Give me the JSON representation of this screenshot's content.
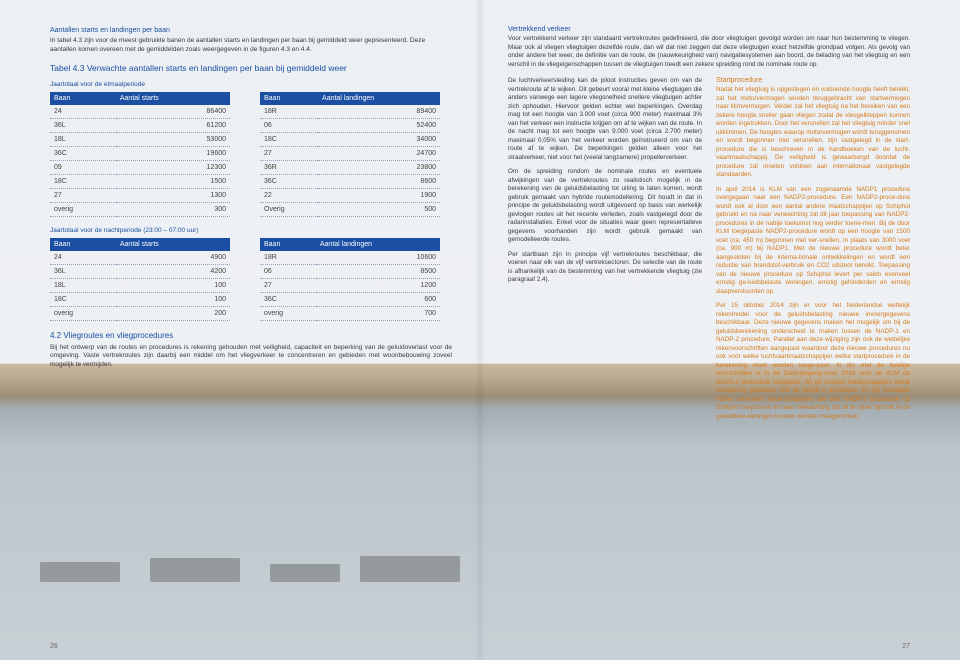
{
  "colors": {
    "accent": "#1a4fa3",
    "highlight": "#d57a1b",
    "text": "#3a3a3a",
    "rule": "#8fa0b7"
  },
  "leftPage": {
    "lead_head": "Aantallen starts en landingen per baan",
    "lead_body": "In tabel 4.3 zijn voor de meest gebruikte banen de aantallen starts en landingen per baan bij gemiddeld weer gepresenteerd. Deze aantallen komen overeen met de gemiddelden zoals weergegeven in de figuren 4.3 en 4.4.",
    "table_caption": "Tabel 4.3 Verwachte aantallen starts en landingen per baan bij gemiddeld weer",
    "subcap_1": "Jaartotaal voor de etmaalperiode",
    "subcap_2": "Jaartotaal voor de nachtperiode (23:00 – 07:00 uur)",
    "headers": {
      "baan": "Baan",
      "starts": "Aantal starts",
      "landingen": "Aantal landingen"
    },
    "etmaal_starts": [
      [
        "24",
        "86400"
      ],
      [
        "36L",
        "61200"
      ],
      [
        "18L",
        "53000"
      ],
      [
        "36C",
        "19600"
      ],
      [
        "09",
        "12300"
      ],
      [
        "18C",
        "1500"
      ],
      [
        "27",
        "1300"
      ],
      [
        "overig",
        "300"
      ]
    ],
    "etmaal_landingen": [
      [
        "18R",
        "89400"
      ],
      [
        "06",
        "52400"
      ],
      [
        "18C",
        "34000"
      ],
      [
        "27",
        "24700"
      ],
      [
        "36R",
        "23800"
      ],
      [
        "36C",
        "8600"
      ],
      [
        "22",
        "1900"
      ],
      [
        "Overig",
        "500"
      ]
    ],
    "nacht_starts": [
      [
        "24",
        "4900"
      ],
      [
        "36L",
        "4200"
      ],
      [
        "18L",
        "100"
      ],
      [
        "18C",
        "100"
      ],
      [
        "overig",
        "200"
      ]
    ],
    "nacht_landingen": [
      [
        "18R",
        "10600"
      ],
      [
        "06",
        "8500"
      ],
      [
        "27",
        "1200"
      ],
      [
        "36C",
        "600"
      ],
      [
        "overig",
        "700"
      ]
    ],
    "sect_head": "4.2 Vliegroutes en vliegprocedures",
    "sect_para": "Bij het ontwerp van de routes en procedures is rekening gehouden met veiligheid, capaciteit en beperking van de geluidoverlast voor de omgeving. Vaste vertrekroutes zijn daarbij een middel om het vliegverkeer te concentreren en gebieden met woonbebouwing zoveel mogelijk te vermijden.",
    "page_number": "26"
  },
  "rightPage": {
    "head1": "Vertrekkend verkeer",
    "para1": "Voor vertrekkend verkeer zijn standaard vertrekroutes gedefinieerd, die door vliegtuigen gevolgd worden om naar hun bestemming te vliegen. Maar ook al vliegen vliegtuigen dezelfde route, dan wil dat niet zeggen dat deze vliegtuigen exact hetzelfde grondpad volgen. Als gevolg van onder andere het weer, de definitie van de route, de (nauwkeurigheid van) navigatiesystemen aan boord, de belading van het vliegtuig en een verschil in de vliegeigenschappen tussen de vliegtuigen treedt een zekere spreiding rond de nominale route op.",
    "col_left_1": "De luchtverkeersleiding kan de piloot instructies geven om van de vertrekroute af te wijken. Dit gebeurt vooral met kleine vliegtuigen die anders vanwege een lagere vliegsnelheid snellere vliegtuigen achter zich ophouden. Hiervoor gelden echter wel beperkingen. Overdag mag tot een hoogte van 3.000 voet (circa 900 meter) maximaal 3% van het verkeer een instructie krijgen om af te wijken van de route. In de nacht mag tot een hoogte van 9.000 voet (circa 2.700 meter) maximaal 0,05% van het verkeer worden geïnstrueerd om van de route af te wijken. De beperkingen gelden alleen voor het straalverkeer, niet voor het (veelal langzamere) propellerverkeer.",
    "col_left_2": "Om de spreiding rondom de nominale routes en eventuele afwijkingen van de vertrekroutes zo realistisch mogelijk in de berekening van de geluidsbelasting tot uiting te laten komen, wordt gebruik gemaakt van hybride routemodellering. Dit houdt in dat in principe de geluidsbelasting wordt uitgevoerd op basis van werkelijk gevlogen routes uit het recente verleden, zoals vastgelegd door de radarinstallaties. Enkel voor de situaties waar geen representatieve gegevens voorhanden zijn wordt gebruik gemaakt van gemodelleerde routes.",
    "col_left_3": "Per startbaan zijn in principe vijf vertrekroutes beschikbaar, die voeren naar elk van de vijf vertreksectoren. De selectie van de route is afhankelijk van de bestemming van het vertrekkende vliegtuig (zie paragraaf 2.4).",
    "col_right_head": "Startprocedure",
    "col_right_1": "Nadat het vliegtuig is opgestegen en voldoende hoogte heeft bereikt, zal het motorvermogen worden teruggebracht van startvermogen naar klimvermogen. Verder zal het vliegtuig na het bereiken van een zekere hoogte sneller gaan vliegen zodat de vleugelkleppen kunnen worden ingetrokken. Door het versnellen zal het vliegtuig minder snel uitklimmen. De hoogtes waarop motorvermogen wordt teruggenomen en wordt begonnen met versnellen, zijn vastgelegd in de start-procedure die is beschreven in de handboeken van de lucht-vaartmaatschappij. De veiligheid is gewaarborgd doordat de procedure zal moeten voldoen aan internationaal vastgelegde standaarden.",
    "col_right_2": "In april 2014 is KLM van een zogenaamde NADP1 procedure overgegaan naar een NADP2-procedure. Een NADP2-proce-dure wordt ook al door een aantal andere maatschappijen op Schiphol gebruikt en na naar verwachting zal dit jaar toepassing van NADP2-procedures in de nabije toekomst nog verder toene-men. Bij de door KLM toegepaste NADP2-procedure wordt op een hoogte van 1500 voet (ca. 450 m) begonnen met ver-snellen, in plaats van 3000 voet (ca. 900 m) bij NADP1. Met de nieuwe procedure wordt beter aangesloten bij de interna-tionale ontwikkelingen en wordt een reductie van brandstof-verbruik en CO2 uitstoot bereikt. Toepassing van de nieuwe procedure op Schiphol levert per saldo evenveel ernstig ge-luidsbelaste woningen, ernstig gehinderden en ernstig slaapverstoorden op.",
    "col_right_3": "Per 15 oktober 2014 zijn er voor het Nederlandse wettelijk rekenmodel voor de geluidsbelasting nieuwe invoergegevens beschikbaar. Deze nieuwe gegevens maken het mogelijk om bij de geluidsberekening onderscheid te maken tussen de NADP-1 en NADP-2 procedure. Parallel aan deze wijziging zijn ook de wettelijke rekenvoorschriften aangepast waardoor deze nieuwe procedures nu ook voor welke luchtvaartmaatschappijen welke startprocedure in de berekening moet worden toege-past. In lijn met de huidige voorschriften is in de Gebruiksprog-nose 2016 voor de KLM de NAPD-2 procedure toegepast. Bij de overige maatschappijen wordt vooralsnog gerekend met de NADP-1 procedure. Er zijn inmiddels echter meerdere maat-schappijen die een NADP-2 procedure op Schiphol toepassen en naar verwachting zal dit te zijner tijd ook in de geluidbere-keningen kunnen worden meegenomen.",
    "page_number": "27"
  }
}
